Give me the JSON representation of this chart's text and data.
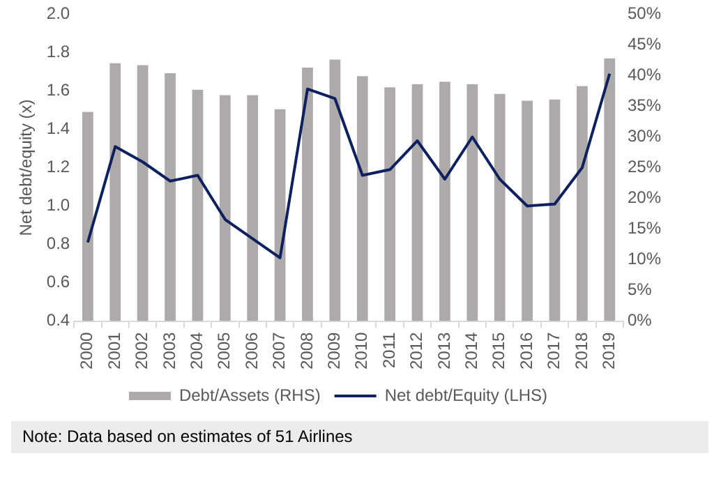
{
  "chart_data": {
    "type": "bar",
    "ylabel": "Net debt/equity (x)",
    "categories": [
      "2000",
      "2001",
      "2002",
      "2003",
      "2004",
      "2005",
      "2006",
      "2007",
      "2008",
      "2009",
      "2010",
      "2011",
      "2012",
      "2013",
      "2014",
      "2015",
      "2016",
      "2017",
      "2018",
      "2019"
    ],
    "series": [
      {
        "name": "Debt/Assets (RHS)",
        "axis": "y2",
        "color": "#aeaaaa",
        "values": [
          34.1,
          42.0,
          41.7,
          40.4,
          37.7,
          36.8,
          36.8,
          34.5,
          41.3,
          42.6,
          39.9,
          38.1,
          38.6,
          39.0,
          38.6,
          37.0,
          35.9,
          36.1,
          38.3,
          42.8
        ]
      },
      {
        "name": "Net debt/Equity (LHS)",
        "type": "line",
        "axis": "y",
        "color": "#0d2160",
        "values": [
          0.81,
          1.31,
          1.23,
          1.13,
          1.16,
          0.93,
          0.83,
          0.73,
          1.61,
          1.56,
          1.16,
          1.19,
          1.34,
          1.14,
          1.36,
          1.14,
          1.0,
          1.01,
          1.2,
          1.69
        ]
      }
    ],
    "ylim": [
      0.4,
      2.0
    ],
    "yticks": [
      {
        "value": 0.4,
        "label": "0.4"
      },
      {
        "value": 0.6,
        "label": "0.6"
      },
      {
        "value": 0.8,
        "label": "0.8"
      },
      {
        "value": 1.0,
        "label": "1.0"
      },
      {
        "value": 1.2,
        "label": "1.2"
      },
      {
        "value": 1.4,
        "label": "1.4"
      },
      {
        "value": 1.6,
        "label": "1.6"
      },
      {
        "value": 1.8,
        "label": "1.8"
      },
      {
        "value": 2.0,
        "label": "2.0"
      }
    ],
    "y2lim": [
      0,
      50
    ],
    "y2ticks": [
      {
        "value": 0,
        "label": "0%"
      },
      {
        "value": 5,
        "label": "5%"
      },
      {
        "value": 10,
        "label": "10%"
      },
      {
        "value": 15,
        "label": "15%"
      },
      {
        "value": 20,
        "label": "20%"
      },
      {
        "value": 25,
        "label": "25%"
      },
      {
        "value": 30,
        "label": "30%"
      },
      {
        "value": 35,
        "label": "35%"
      },
      {
        "value": 40,
        "label": "40%"
      },
      {
        "value": 45,
        "label": "45%"
      },
      {
        "value": 50,
        "label": "50%"
      }
    ],
    "grid": false,
    "legend": "bottom",
    "marker": "none",
    "line_style": "solid",
    "annotations": [
      "Note: Data based on estimates of 51 Airlines"
    ]
  }
}
